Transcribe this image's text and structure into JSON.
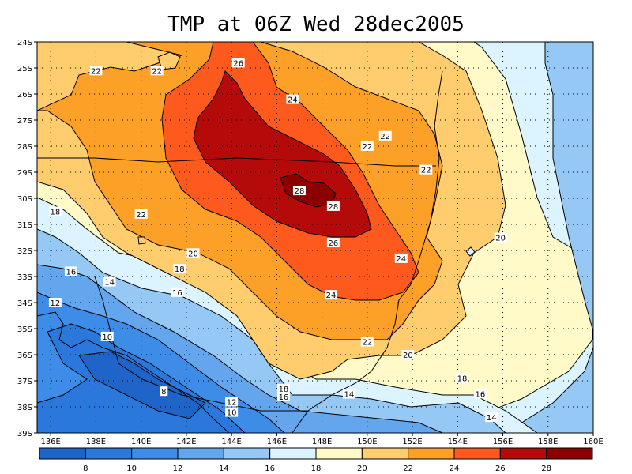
{
  "title": "TMP at 06Z Wed 28dec2005",
  "map": {
    "lon_range": [
      135.4,
      160
    ],
    "lat_range": [
      -39,
      -24
    ],
    "lon_ticks": [
      "136E",
      "138E",
      "140E",
      "142E",
      "144E",
      "146E",
      "148E",
      "150E",
      "152E",
      "154E",
      "156E",
      "158E",
      "160E"
    ],
    "lat_ticks": [
      "24S",
      "25S",
      "26S",
      "27S",
      "28S",
      "29S",
      "30S",
      "31S",
      "32S",
      "33S",
      "34S",
      "35S",
      "36S",
      "37S",
      "38S",
      "39S"
    ],
    "grid": true,
    "contour_labels": [
      {
        "text": "22",
        "lon": 138.0,
        "lat": -25.1
      },
      {
        "text": "22",
        "lon": 140.7,
        "lat": -25.1
      },
      {
        "text": "26",
        "lon": 144.3,
        "lat": -24.8
      },
      {
        "text": "24",
        "lon": 146.7,
        "lat": -26.2
      },
      {
        "text": "22",
        "lon": 150.8,
        "lat": -27.6
      },
      {
        "text": "22",
        "lon": 150.0,
        "lat": -28.0
      },
      {
        "text": "22",
        "lon": 152.6,
        "lat": -28.9
      },
      {
        "text": "28",
        "lon": 147.0,
        "lat": -29.7
      },
      {
        "text": "28",
        "lon": 148.5,
        "lat": -30.3
      },
      {
        "text": "22",
        "lon": 140.0,
        "lat": -30.6
      },
      {
        "text": "18",
        "lon": 136.2,
        "lat": -30.5
      },
      {
        "text": "26",
        "lon": 148.5,
        "lat": -31.7
      },
      {
        "text": "20",
        "lon": 155.9,
        "lat": -31.5
      },
      {
        "text": "24",
        "lon": 151.5,
        "lat": -32.3
      },
      {
        "text": "20",
        "lon": 142.3,
        "lat": -32.1
      },
      {
        "text": "18",
        "lon": 141.7,
        "lat": -32.7
      },
      {
        "text": "16",
        "lon": 136.9,
        "lat": -32.8
      },
      {
        "text": "14",
        "lon": 138.6,
        "lat": -33.2
      },
      {
        "text": "16",
        "lon": 141.6,
        "lat": -33.6
      },
      {
        "text": "24",
        "lon": 148.4,
        "lat": -33.7
      },
      {
        "text": "12",
        "lon": 136.2,
        "lat": -34.0
      },
      {
        "text": "10",
        "lon": 138.5,
        "lat": -35.3
      },
      {
        "text": "22",
        "lon": 150.0,
        "lat": -35.5
      },
      {
        "text": "20",
        "lon": 151.8,
        "lat": -36.0
      },
      {
        "text": "18",
        "lon": 154.2,
        "lat": -36.9
      },
      {
        "text": "18",
        "lon": 146.3,
        "lat": -37.3
      },
      {
        "text": "16",
        "lon": 146.3,
        "lat": -37.6
      },
      {
        "text": "14",
        "lon": 149.2,
        "lat": -37.5
      },
      {
        "text": "16",
        "lon": 155.0,
        "lat": -37.5
      },
      {
        "text": "8",
        "lon": 141.0,
        "lat": -37.4
      },
      {
        "text": "12",
        "lon": 144.0,
        "lat": -37.8
      },
      {
        "text": "10",
        "lon": 144.0,
        "lat": -38.2
      },
      {
        "text": "14",
        "lon": 155.5,
        "lat": -38.4
      }
    ]
  },
  "colorbar": {
    "labels": [
      "8",
      "10",
      "12",
      "14",
      "16",
      "18",
      "20",
      "22",
      "24",
      "26",
      "28"
    ],
    "colors": [
      "#1f64c8",
      "#2a78dc",
      "#3c8ce8",
      "#64a6ee",
      "#96c8f5",
      "#dcf4ff",
      "#fffac8",
      "#ffcd6e",
      "#fda028",
      "#ff5a1e",
      "#b40a0a",
      "#8c0000"
    ]
  }
}
